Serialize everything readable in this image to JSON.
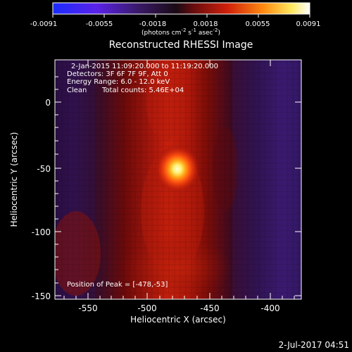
{
  "colorbar": {
    "ticks": [
      "-0.0091",
      "-0.0055",
      "-0.0018",
      "0.0018",
      "0.0055",
      "0.0091"
    ],
    "units": "(photons cm",
    "units_exp1": "-2",
    "units_mid": " s",
    "units_exp2": "-1",
    "units_mid2": " asec",
    "units_exp3": "-2",
    "units_end": ")"
  },
  "title": "Reconstructed RHESSI Image",
  "info": {
    "line1": "2-Jan-2015 11:09:20.000 to 11:19:20.000",
    "line2": "Detectors: 3F 6F 7F 9F, Att 0",
    "line3": "Energy Range: 6.0 - 12.0 keV",
    "line4_a": "Clean",
    "line4_b": "Total counts: 5.46E+04"
  },
  "peak_label": "Position of Peak = [-478,-53]",
  "axes": {
    "xlabel": "Heliocentric X (arcsec)",
    "ylabel": "Heliocentric Y (arcsec)",
    "xticks": [
      "-550",
      "-500",
      "-450",
      "-400"
    ],
    "yticks": [
      "0",
      "-50",
      "-100",
      "-150"
    ]
  },
  "timestamp": "2-Jul-2017 04:51",
  "colors": {
    "background": "#000000",
    "foreground": "#ffffff",
    "peak": "#ffffd0",
    "negative": "#3c1a6e"
  }
}
